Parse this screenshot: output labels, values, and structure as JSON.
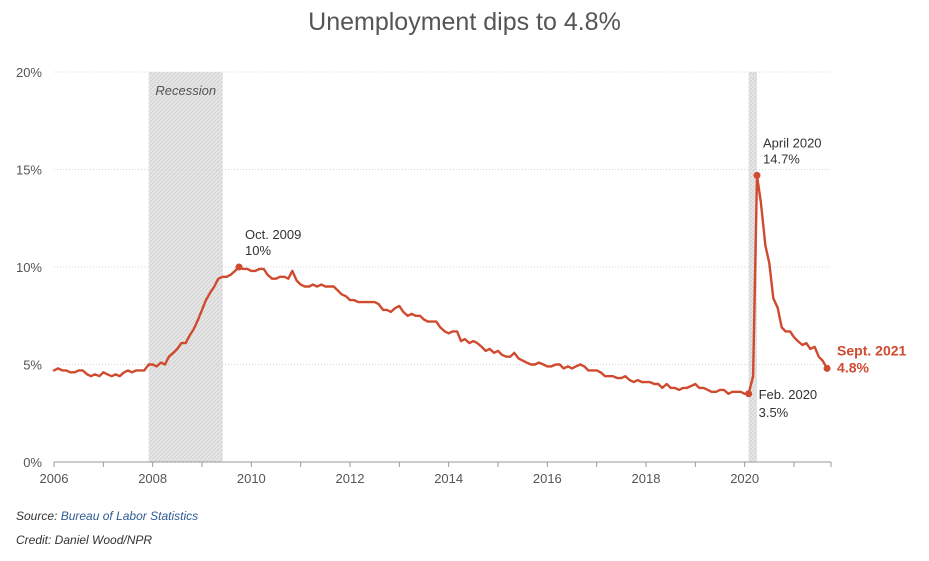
{
  "chart_data": {
    "type": "line",
    "title": "Unemployment dips to 4.8%",
    "xlabel": "",
    "ylabel": "",
    "xlim": [
      2006,
      2021.75
    ],
    "ylim": [
      0,
      20
    ],
    "grid": true,
    "legend": "none",
    "x_ticks": [
      2006,
      2008,
      2010,
      2012,
      2014,
      2016,
      2018,
      2020
    ],
    "x_tick_labels": [
      "2006",
      "2008",
      "2010",
      "2012",
      "2014",
      "2016",
      "2018",
      "2020"
    ],
    "y_ticks": [
      0,
      5,
      10,
      15,
      20
    ],
    "y_tick_labels": [
      "0%",
      "5%",
      "10%",
      "15%",
      "20%"
    ],
    "line_color": "#d04a2f",
    "recession_label": "Recession",
    "recessions": [
      [
        2007.92,
        2009.42
      ],
      [
        2020.08,
        2020.25
      ]
    ],
    "series": [
      {
        "x": [
          2006.0,
          2006.08,
          2006.17,
          2006.25,
          2006.33,
          2006.42,
          2006.5,
          2006.58,
          2006.67,
          2006.75,
          2006.83,
          2006.92,
          2007.0,
          2007.08,
          2007.17,
          2007.25,
          2007.33,
          2007.42,
          2007.5,
          2007.58,
          2007.67,
          2007.75,
          2007.83,
          2007.92,
          2008.0,
          2008.08,
          2008.17,
          2008.25,
          2008.33,
          2008.42,
          2008.5,
          2008.58,
          2008.67,
          2008.75,
          2008.83,
          2008.92,
          2009.0,
          2009.08,
          2009.17,
          2009.25,
          2009.33,
          2009.42,
          2009.5,
          2009.58,
          2009.67,
          2009.75,
          2009.83,
          2009.92,
          2010.0,
          2010.08,
          2010.17,
          2010.25,
          2010.33,
          2010.42,
          2010.5,
          2010.58,
          2010.67,
          2010.75,
          2010.83,
          2010.92,
          2011.0,
          2011.08,
          2011.17,
          2011.25,
          2011.33,
          2011.42,
          2011.5,
          2011.58,
          2011.67,
          2011.75,
          2011.83,
          2011.92,
          2012.0,
          2012.08,
          2012.17,
          2012.25,
          2012.33,
          2012.42,
          2012.5,
          2012.58,
          2012.67,
          2012.75,
          2012.83,
          2012.92,
          2013.0,
          2013.08,
          2013.17,
          2013.25,
          2013.33,
          2013.42,
          2013.5,
          2013.58,
          2013.67,
          2013.75,
          2013.83,
          2013.92,
          2014.0,
          2014.08,
          2014.17,
          2014.25,
          2014.33,
          2014.42,
          2014.5,
          2014.58,
          2014.67,
          2014.75,
          2014.83,
          2014.92,
          2015.0,
          2015.08,
          2015.17,
          2015.25,
          2015.33,
          2015.42,
          2015.5,
          2015.58,
          2015.67,
          2015.75,
          2015.83,
          2015.92,
          2016.0,
          2016.08,
          2016.17,
          2016.25,
          2016.33,
          2016.42,
          2016.5,
          2016.58,
          2016.67,
          2016.75,
          2016.83,
          2016.92,
          2017.0,
          2017.08,
          2017.17,
          2017.25,
          2017.33,
          2017.42,
          2017.5,
          2017.58,
          2017.67,
          2017.75,
          2017.83,
          2017.92,
          2018.0,
          2018.08,
          2018.17,
          2018.25,
          2018.33,
          2018.42,
          2018.5,
          2018.58,
          2018.67,
          2018.75,
          2018.83,
          2018.92,
          2019.0,
          2019.08,
          2019.17,
          2019.25,
          2019.33,
          2019.42,
          2019.5,
          2019.58,
          2019.67,
          2019.75,
          2019.83,
          2019.92,
          2020.0,
          2020.08,
          2020.17,
          2020.25,
          2020.33,
          2020.42,
          2020.5,
          2020.58,
          2020.67,
          2020.75,
          2020.83,
          2020.92,
          2021.0,
          2021.08,
          2021.17,
          2021.25,
          2021.33,
          2021.42,
          2021.5,
          2021.58,
          2021.67
        ],
        "values": [
          4.7,
          4.8,
          4.7,
          4.7,
          4.6,
          4.6,
          4.7,
          4.7,
          4.5,
          4.4,
          4.5,
          4.4,
          4.6,
          4.5,
          4.4,
          4.5,
          4.4,
          4.6,
          4.7,
          4.6,
          4.7,
          4.7,
          4.7,
          5.0,
          5.0,
          4.9,
          5.1,
          5.0,
          5.4,
          5.6,
          5.8,
          6.1,
          6.1,
          6.5,
          6.8,
          7.3,
          7.8,
          8.3,
          8.7,
          9.0,
          9.4,
          9.5,
          9.5,
          9.6,
          9.8,
          10.0,
          9.9,
          9.9,
          9.8,
          9.8,
          9.9,
          9.9,
          9.6,
          9.4,
          9.4,
          9.5,
          9.5,
          9.4,
          9.8,
          9.3,
          9.1,
          9.0,
          9.0,
          9.1,
          9.0,
          9.1,
          9.0,
          9.0,
          9.0,
          8.8,
          8.6,
          8.5,
          8.3,
          8.3,
          8.2,
          8.2,
          8.2,
          8.2,
          8.2,
          8.1,
          7.8,
          7.8,
          7.7,
          7.9,
          8.0,
          7.7,
          7.5,
          7.6,
          7.5,
          7.5,
          7.3,
          7.2,
          7.2,
          7.2,
          6.9,
          6.7,
          6.6,
          6.7,
          6.7,
          6.2,
          6.3,
          6.1,
          6.2,
          6.1,
          5.9,
          5.7,
          5.8,
          5.6,
          5.7,
          5.5,
          5.4,
          5.4,
          5.6,
          5.3,
          5.2,
          5.1,
          5.0,
          5.0,
          5.1,
          5.0,
          4.9,
          4.9,
          5.0,
          5.0,
          4.8,
          4.9,
          4.8,
          4.9,
          5.0,
          4.9,
          4.7,
          4.7,
          4.7,
          4.6,
          4.4,
          4.4,
          4.4,
          4.3,
          4.3,
          4.4,
          4.2,
          4.1,
          4.2,
          4.1,
          4.1,
          4.1,
          4.0,
          4.0,
          3.8,
          4.0,
          3.8,
          3.8,
          3.7,
          3.8,
          3.8,
          3.9,
          4.0,
          3.8,
          3.8,
          3.7,
          3.6,
          3.6,
          3.7,
          3.7,
          3.5,
          3.6,
          3.6,
          3.6,
          3.5,
          3.5,
          4.4,
          14.7,
          13.3,
          11.1,
          10.2,
          8.4,
          7.9,
          6.9,
          6.7,
          6.7,
          6.4,
          6.2,
          6.0,
          6.1,
          5.8,
          5.9,
          5.4,
          5.2,
          4.8
        ]
      }
    ],
    "annotations": [
      {
        "x": 2009.75,
        "y": 10.0,
        "line1": "Oct. 2009",
        "line2": "10%",
        "style": "normal",
        "placement": "above-right"
      },
      {
        "x": 2020.25,
        "y": 14.7,
        "line1": "April 2020",
        "line2": "14.7%",
        "style": "normal",
        "placement": "above-right"
      },
      {
        "x": 2020.08,
        "y": 3.5,
        "line1": "Feb. 2020",
        "line2": "3.5%",
        "style": "normal",
        "placement": "below-right"
      },
      {
        "x": 2021.67,
        "y": 4.8,
        "line1": "Sept. 2021",
        "line2": "4.8%",
        "style": "bold",
        "placement": "right"
      }
    ]
  },
  "footer": {
    "source_prefix": "Source: ",
    "source_name": "Bureau of Labor Statistics",
    "credit": "Credit: Daniel Wood/NPR"
  }
}
